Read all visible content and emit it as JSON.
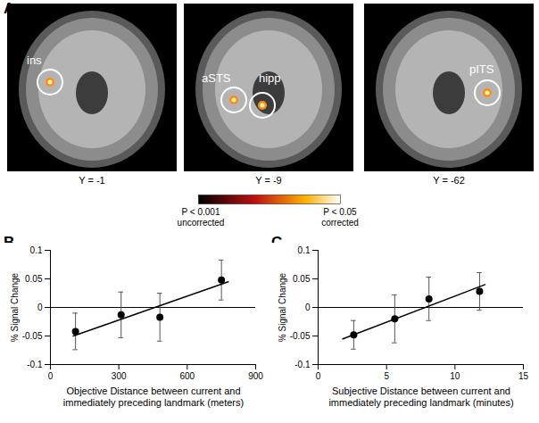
{
  "figure": {
    "panel_labels": [
      "A",
      "B",
      "C"
    ],
    "brain_slices": [
      {
        "coordinate": "Y = -1",
        "regions": [
          "ins"
        ]
      },
      {
        "coordinate": "Y = -9",
        "regions": [
          "aSTS",
          "hipp"
        ]
      },
      {
        "coordinate": "Y = -62",
        "regions": [
          "pITS"
        ]
      }
    ],
    "colorbar": {
      "low_label": [
        "P < 0.001",
        "uncorrected"
      ],
      "high_label": [
        "P < 0.05",
        "corrected"
      ]
    }
  },
  "chart_data": [
    {
      "type": "scatter",
      "panel": "B",
      "x_label": "Objective Distance between current and immediately preceding landmark (meters)",
      "y_label": "% Signal Change",
      "x": [
        110,
        310,
        480,
        750
      ],
      "values": [
        -0.042,
        -0.013,
        -0.017,
        0.048
      ],
      "error": [
        0.032,
        0.04,
        0.042,
        0.035
      ],
      "fit": {
        "x": [
          100,
          780
        ],
        "y": [
          -0.05,
          0.045
        ]
      },
      "hline": 0,
      "color": "#000000",
      "marker": "circle",
      "xlim": [
        0,
        900
      ],
      "xticks": [
        0,
        300,
        600,
        900
      ],
      "ylim": [
        -0.1,
        0.1
      ],
      "yticks": [
        -0.1,
        -0.05,
        0,
        0.05,
        0.1
      ]
    },
    {
      "type": "scatter",
      "panel": "C",
      "x_label": "Subjective Distance between current and immediately preceding landmark (minutes)",
      "y_label": "% Signal Change",
      "x": [
        2.6,
        5.6,
        8.1,
        11.8
      ],
      "values": [
        -0.048,
        -0.02,
        0.015,
        0.028
      ],
      "error": [
        0.025,
        0.042,
        0.038,
        0.033
      ],
      "fit": {
        "x": [
          1.8,
          12.2
        ],
        "y": [
          -0.055,
          0.04
        ]
      },
      "hline": 0,
      "color": "#000000",
      "marker": "circle",
      "xlim": [
        0,
        15
      ],
      "xticks": [
        0,
        5,
        10,
        15
      ],
      "ylim": [
        -0.1,
        0.1
      ],
      "yticks": [
        -0.1,
        -0.05,
        0,
        0.05,
        0.1
      ]
    }
  ]
}
